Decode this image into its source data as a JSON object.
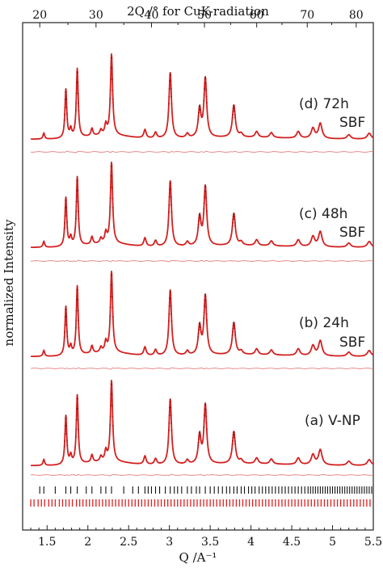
{
  "chart_data": {
    "type": "line",
    "x_bottom": {
      "label": "Q /A⁻¹",
      "range": [
        1.2,
        5.5
      ],
      "ticks": [
        1.5,
        2.0,
        2.5,
        3.0,
        3.5,
        4.0,
        4.5,
        5.0,
        5.5
      ],
      "tick_labels": [
        "1.5",
        "2",
        "2.5",
        "3",
        "3.5",
        "4",
        "4.5",
        "5",
        "5.5"
      ]
    },
    "x_top": {
      "label": "2Q /° for CuK-radiation",
      "ticks": [
        20,
        30,
        40,
        50,
        60,
        70,
        80
      ],
      "tick_labels": [
        "20",
        "30",
        "40",
        "50",
        "60",
        "70",
        "80"
      ],
      "q_positions": [
        1.41,
        2.1,
        2.78,
        3.43,
        4.07,
        4.69,
        5.29
      ]
    },
    "ylabel": "normalized Intensity",
    "grid": false,
    "colors": {
      "fit": "#d42020",
      "data": "#a01010",
      "residual": "#e07070",
      "tick_black": "#111111",
      "tick_red": "#e02020"
    },
    "peaks": [
      {
        "q": 1.46,
        "h": 0.07
      },
      {
        "q": 1.73,
        "h": 0.58
      },
      {
        "q": 1.79,
        "h": 0.1
      },
      {
        "q": 1.87,
        "h": 0.82
      },
      {
        "q": 2.05,
        "h": 0.09
      },
      {
        "q": 2.16,
        "h": 0.06
      },
      {
        "q": 2.22,
        "h": 0.12
      },
      {
        "q": 2.29,
        "h": 0.96
      },
      {
        "q": 2.7,
        "h": 0.1
      },
      {
        "q": 2.83,
        "h": 0.07
      },
      {
        "q": 3.01,
        "h": 0.78
      },
      {
        "q": 3.22,
        "h": 0.05
      },
      {
        "q": 3.37,
        "h": 0.33
      },
      {
        "q": 3.44,
        "h": 0.7
      },
      {
        "q": 3.79,
        "h": 0.38
      },
      {
        "q": 3.88,
        "h": 0.04
      },
      {
        "q": 4.07,
        "h": 0.07
      },
      {
        "q": 4.25,
        "h": 0.06
      },
      {
        "q": 4.58,
        "h": 0.08
      },
      {
        "q": 4.76,
        "h": 0.12
      },
      {
        "q": 4.85,
        "h": 0.18
      },
      {
        "q": 5.2,
        "h": 0.05
      },
      {
        "q": 5.45,
        "h": 0.07
      }
    ],
    "series": [
      {
        "name": "(d) 72h",
        "annotation_line1": "(d) 72h",
        "annotation_line2": "SBF"
      },
      {
        "name": "(c) 48h",
        "annotation_line1": "(c) 48h",
        "annotation_line2": "SBF"
      },
      {
        "name": "(b) 24h",
        "annotation_line1": "(b) 24h",
        "annotation_line2": "SBF"
      },
      {
        "name": "(a) V-NP",
        "annotation_line1": "(a) V-NP",
        "annotation_line2": ""
      }
    ],
    "reflection_ticks_black": [
      1.41,
      1.46,
      1.6,
      1.73,
      1.79,
      1.87,
      1.98,
      2.05,
      2.16,
      2.22,
      2.29,
      2.44,
      2.55,
      2.62,
      2.7,
      2.74,
      2.78,
      2.83,
      2.88,
      2.95,
      3.01,
      3.06,
      3.1,
      3.15,
      3.22,
      3.27,
      3.33,
      3.37,
      3.44,
      3.5,
      3.55,
      3.6,
      3.65,
      3.7,
      3.74,
      3.79,
      3.83,
      3.88,
      3.92,
      3.97,
      4.01,
      4.05,
      4.1,
      4.14,
      4.18,
      4.22,
      4.26,
      4.3,
      4.34,
      4.38,
      4.42,
      4.46,
      4.5,
      4.54,
      4.58,
      4.62,
      4.66,
      4.7,
      4.73,
      4.76,
      4.79,
      4.82,
      4.85,
      4.88,
      4.91,
      4.94,
      4.97,
      5.0,
      5.03,
      5.06,
      5.09,
      5.12,
      5.15,
      5.18,
      5.21,
      5.24,
      5.27,
      5.3,
      5.33,
      5.36,
      5.39,
      5.42,
      5.45,
      5.48
    ],
    "reflection_ticks_red": [
      1.3,
      1.34,
      1.39,
      1.43,
      1.47,
      1.52,
      1.56,
      1.6,
      1.65,
      1.69,
      1.73,
      1.77,
      1.81,
      1.86,
      1.9,
      1.94,
      1.98,
      2.02,
      2.06,
      2.1,
      2.14,
      2.18,
      2.22,
      2.26,
      2.3,
      2.34,
      2.38,
      2.42,
      2.46,
      2.5,
      2.54,
      2.58,
      2.62,
      2.66,
      2.7,
      2.74,
      2.78,
      2.82,
      2.86,
      2.9,
      2.94,
      2.98,
      3.02,
      3.06,
      3.1,
      3.14,
      3.18,
      3.22,
      3.26,
      3.3,
      3.34,
      3.38,
      3.42,
      3.46,
      3.5,
      3.54,
      3.58,
      3.62,
      3.66,
      3.7,
      3.74,
      3.78,
      3.82,
      3.86,
      3.9,
      3.94,
      3.98,
      4.02,
      4.06,
      4.1,
      4.14,
      4.18,
      4.22,
      4.26,
      4.3,
      4.34,
      4.38,
      4.42,
      4.46,
      4.5,
      4.54,
      4.58,
      4.62,
      4.66,
      4.7,
      4.74,
      4.78,
      4.82,
      4.86,
      4.9,
      4.94,
      4.98,
      5.02,
      5.06,
      5.1,
      5.14,
      5.18,
      5.22,
      5.26,
      5.3,
      5.34,
      5.38,
      5.42,
      5.46
    ]
  }
}
